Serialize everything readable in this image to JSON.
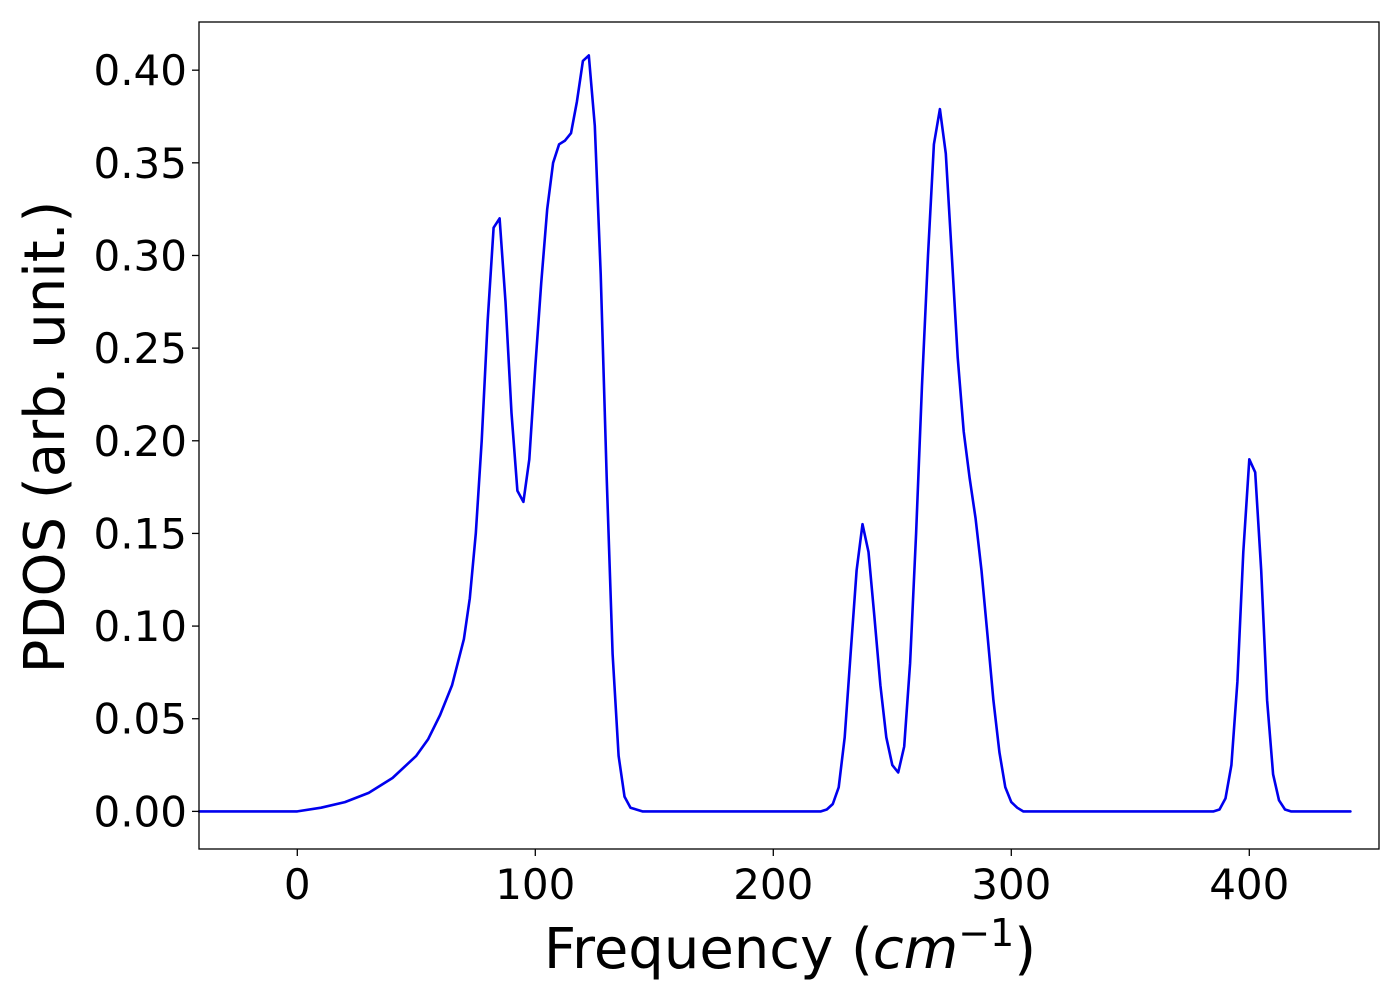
{
  "chart_data": {
    "type": "line",
    "title": "",
    "xlabel": {
      "prefix": "Frequency (",
      "var": "cm",
      "sup": "−1",
      "suffix": ")"
    },
    "ylabel": "PDOS (arb. unit.)",
    "xlim": [
      -41.3,
      454.5
    ],
    "ylim": [
      -0.0203,
      0.426
    ],
    "xticks": [
      0,
      100,
      200,
      300,
      400
    ],
    "xtick_labels": [
      "0",
      "100",
      "200",
      "300",
      "400"
    ],
    "yticks": [
      0.0,
      0.05,
      0.1,
      0.15,
      0.2,
      0.25,
      0.3,
      0.35,
      0.4
    ],
    "ytick_labels": [
      "0.00",
      "0.05",
      "0.10",
      "0.15",
      "0.20",
      "0.25",
      "0.30",
      "0.35",
      "0.40"
    ],
    "grid": false,
    "legend": "none",
    "series": [
      {
        "color": "#0000ee",
        "x": [
          -41.3,
          0,
          10,
          20,
          30,
          40,
          50,
          55,
          60,
          65,
          70,
          72.5,
          75,
          77.5,
          80,
          82.5,
          85,
          87.5,
          90,
          92.5,
          95,
          97.5,
          100,
          102.5,
          105,
          107.5,
          110,
          112.5,
          115,
          117.5,
          120,
          122.5,
          125,
          127.5,
          130,
          132.5,
          135,
          137.5,
          140,
          145,
          150,
          175,
          200,
          220,
          222.5,
          225,
          227.5,
          230,
          232.5,
          235,
          237.5,
          240,
          242.5,
          245,
          247.5,
          250,
          252.5,
          255,
          257.5,
          260,
          262.5,
          265,
          267.5,
          270,
          272.5,
          275,
          277.5,
          280,
          282.5,
          285,
          287.5,
          290,
          292.5,
          295,
          297.5,
          300,
          302.5,
          305,
          310,
          350,
          385,
          387.5,
          390,
          392.5,
          395,
          397.5,
          400,
          402.5,
          405,
          407.5,
          410,
          412.5,
          415,
          417.5,
          420,
          442.5
        ],
        "y": [
          0.0,
          0.0,
          0.002,
          0.005,
          0.01,
          0.018,
          0.03,
          0.039,
          0.052,
          0.068,
          0.093,
          0.115,
          0.15,
          0.2,
          0.265,
          0.315,
          0.32,
          0.275,
          0.215,
          0.173,
          0.167,
          0.19,
          0.24,
          0.285,
          0.325,
          0.35,
          0.36,
          0.362,
          0.366,
          0.383,
          0.405,
          0.408,
          0.37,
          0.29,
          0.18,
          0.085,
          0.03,
          0.008,
          0.002,
          0.0,
          0.0,
          0.0,
          0.0,
          0.0,
          0.001,
          0.004,
          0.013,
          0.04,
          0.085,
          0.13,
          0.155,
          0.14,
          0.105,
          0.068,
          0.04,
          0.025,
          0.021,
          0.035,
          0.08,
          0.15,
          0.23,
          0.3,
          0.36,
          0.379,
          0.355,
          0.3,
          0.245,
          0.205,
          0.18,
          0.158,
          0.13,
          0.095,
          0.06,
          0.032,
          0.013,
          0.005,
          0.002,
          0.0,
          0.0,
          0.0,
          0.0,
          0.001,
          0.007,
          0.025,
          0.07,
          0.14,
          0.19,
          0.183,
          0.13,
          0.06,
          0.02,
          0.006,
          0.001,
          0.0,
          0.0,
          0.0
        ]
      }
    ]
  }
}
